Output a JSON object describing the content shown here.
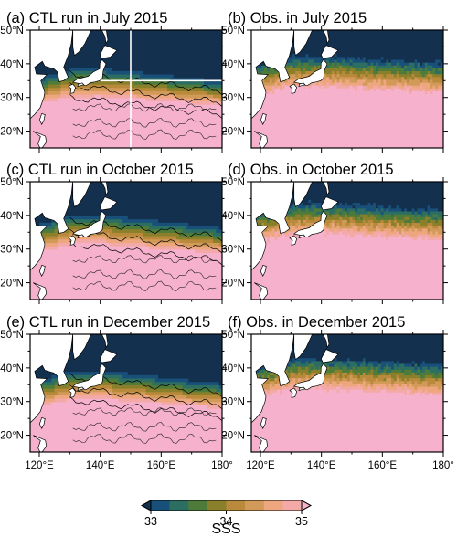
{
  "chart_data": {
    "type": "heatmap",
    "colorbar": {
      "label": "SSS",
      "ticks": [
        33,
        34,
        35
      ],
      "range": [
        33,
        35
      ],
      "levels": [
        33,
        33.25,
        33.5,
        33.75,
        34,
        34.25,
        34.5,
        34.75,
        35
      ],
      "colors": [
        "#14304f",
        "#19507a",
        "#2d6e63",
        "#4e7b3a",
        "#8a7f2a",
        "#b98a3c",
        "#d29a58",
        "#eda67e",
        "#f3aaa7",
        "#f6b1cc"
      ],
      "extend": "both"
    },
    "x_ticks": [
      "120°E",
      "140°E",
      "160°E",
      "180°"
    ],
    "y_ticks": [
      "50°N",
      "40°N",
      "30°N",
      "20°N"
    ],
    "x_range": [
      117,
      180
    ],
    "y_range": [
      15,
      50
    ],
    "panels": [
      {
        "title": "(a) CTL run in July 2015",
        "kind": "model",
        "month": "July",
        "guide": {
          "lon": 150,
          "lat": 35
        }
      },
      {
        "title": "(b) Obs. in July 2015",
        "kind": "obs",
        "month": "July"
      },
      {
        "title": "(c) CTL run in October 2015",
        "kind": "model",
        "month": "October"
      },
      {
        "title": "(d) Obs. in October 2015",
        "kind": "obs",
        "month": "October"
      },
      {
        "title": "(e) CTL run in December 2015",
        "kind": "model",
        "month": "December"
      },
      {
        "title": "(f) Obs. in December 2015",
        "kind": "obs",
        "month": "December"
      }
    ],
    "colors": {
      "land": "#ffffff",
      "guide": "#ffffff",
      "frame": "#000000"
    }
  }
}
